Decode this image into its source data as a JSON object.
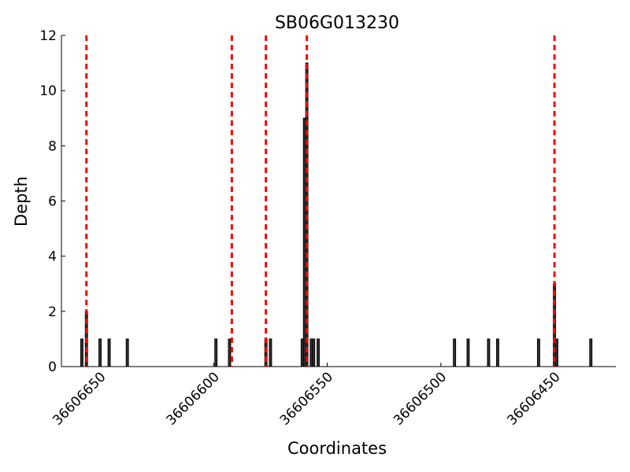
{
  "chart_data": {
    "type": "bar",
    "title": "SB06G013230",
    "x_label": "Coordinates",
    "y_label": "Depth",
    "x": [
      36606658,
      36606656,
      36606650,
      36606646,
      36606638,
      36606599,
      36606593,
      36606577,
      36606575,
      36606561,
      36606560,
      36606559,
      36606557,
      36606556,
      36606554,
      36606494,
      36606488,
      36606479,
      36606475,
      36606457,
      36606450,
      36606449,
      36606434
    ],
    "values": [
      1,
      2,
      1,
      1,
      1,
      1,
      1,
      1,
      1,
      1,
      9,
      11,
      1,
      1,
      1,
      1,
      1,
      1,
      1,
      1,
      3,
      1,
      1
    ],
    "color": "#333333",
    "vlines": [
      36606656,
      36606592,
      36606577,
      36606559,
      36606450
    ],
    "vline_color": "#ff0000",
    "xlim": [
      36606667,
      36606423
    ],
    "xticks": [
      36606650,
      36606600,
      36606550,
      36606500,
      36606450
    ],
    "ylim": [
      0,
      12
    ],
    "yticks": [
      0,
      2,
      4,
      6,
      8,
      10,
      12
    ]
  }
}
